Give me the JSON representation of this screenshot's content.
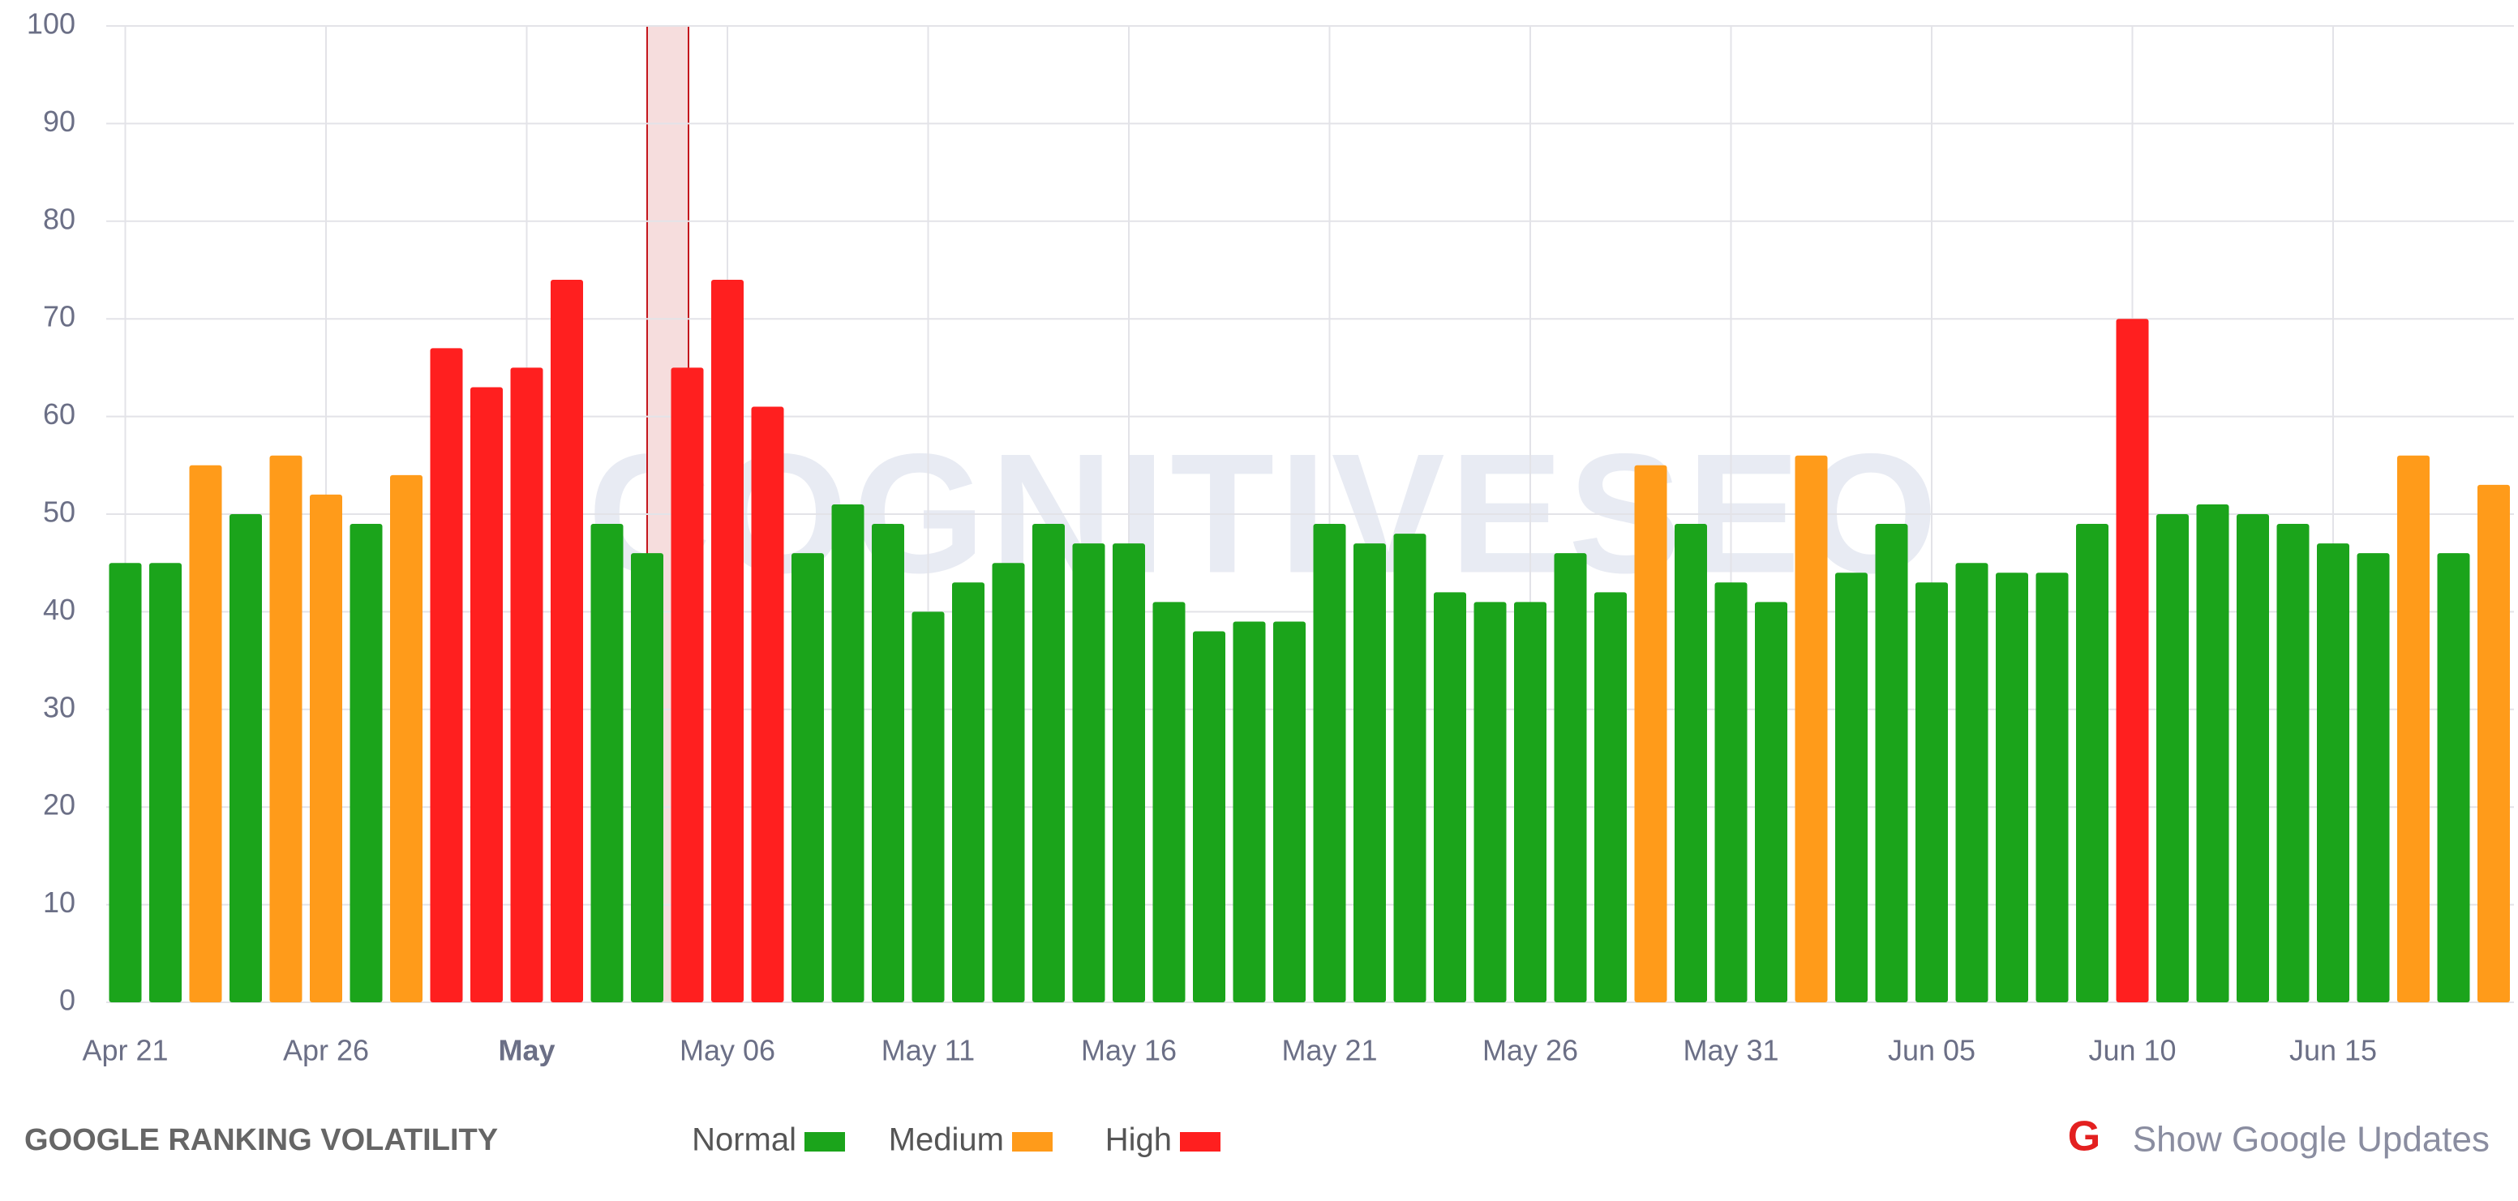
{
  "chart_data": {
    "type": "bar",
    "title": "GOOGLE RANKING VOLATILITY",
    "watermark": "COGNITIVESEO",
    "toggle": "Show Google Updates",
    "categories": [
      "Apr 21",
      null,
      null,
      null,
      null,
      "Apr 26",
      null,
      null,
      null,
      null,
      "May",
      null,
      null,
      null,
      null,
      "May 06",
      null,
      null,
      null,
      null,
      "May 11",
      null,
      null,
      null,
      null,
      "May 16",
      null,
      null,
      null,
      null,
      "May 21",
      null,
      null,
      null,
      null,
      "May 26",
      null,
      null,
      null,
      null,
      "May 31",
      null,
      null,
      null,
      null,
      "Jun 05",
      null,
      null,
      null,
      null,
      "Jun 10",
      null,
      null,
      null,
      null,
      "Jun 15",
      null,
      null,
      null,
      null
    ],
    "series": [
      {
        "name": "Normal",
        "color": "#1ba41b",
        "values": [
          45,
          45,
          null,
          50,
          null,
          null,
          49,
          null,
          null,
          null,
          null,
          null,
          49,
          46,
          null,
          null,
          null,
          46,
          51,
          49,
          40,
          43,
          45,
          49,
          47,
          47,
          41,
          38,
          39,
          39,
          49,
          47,
          48,
          42,
          41,
          41,
          46,
          42,
          null,
          49,
          43,
          41,
          null,
          44,
          49,
          43,
          45,
          44,
          44,
          49,
          null,
          50,
          51,
          50,
          49,
          47,
          46,
          null,
          46,
          null
        ]
      },
      {
        "name": "Medium",
        "color": "#ff9b1a",
        "values": [
          null,
          null,
          55,
          null,
          56,
          52,
          null,
          54,
          null,
          null,
          null,
          null,
          null,
          null,
          null,
          null,
          null,
          null,
          null,
          null,
          null,
          null,
          null,
          null,
          null,
          null,
          null,
          null,
          null,
          null,
          null,
          null,
          null,
          null,
          null,
          null,
          null,
          null,
          55,
          null,
          null,
          null,
          56,
          null,
          null,
          null,
          null,
          null,
          null,
          null,
          null,
          null,
          null,
          null,
          null,
          null,
          null,
          56,
          null,
          53
        ]
      },
      {
        "name": "High",
        "color": "#ff1f1f",
        "values": [
          null,
          null,
          null,
          null,
          null,
          null,
          null,
          null,
          67,
          63,
          65,
          74,
          null,
          null,
          65,
          74,
          61,
          null,
          null,
          null,
          null,
          null,
          null,
          null,
          null,
          null,
          null,
          null,
          null,
          null,
          null,
          null,
          null,
          null,
          null,
          null,
          null,
          null,
          null,
          null,
          null,
          null,
          null,
          null,
          null,
          null,
          null,
          null,
          null,
          null,
          70,
          null,
          null,
          null,
          null,
          null,
          null,
          null,
          null,
          null
        ]
      }
    ],
    "ylim": [
      0,
      100
    ],
    "yticks": [
      0,
      10,
      20,
      30,
      40,
      50,
      60,
      70,
      80,
      90,
      100
    ],
    "grid": true
  }
}
